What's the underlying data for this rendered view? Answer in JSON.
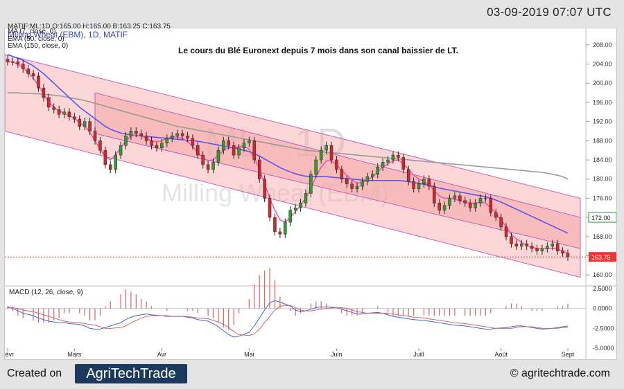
{
  "header": {
    "timestamp": "03-09-2019 07:07 UTC",
    "quote_line": "MATIF:ML:1D O:165.00 H:165.00 B:163.25 C:163.75",
    "symbol_line": "Milling Wheat (EBM), 1D, MATIF",
    "ma_line": "MA (7, close, 0)",
    "ema50_line": "EMA (50, close, 0)",
    "ema150_line": "EMA (150, close, 0)",
    "title": "Le cours du Blé Euronext depuis 7 mois dans son canal baissier de LT.",
    "watermark_big": "ML - 1D",
    "watermark_small": "Milling Wheat (EBM)"
  },
  "footer": {
    "created_on": "Created on",
    "logo_text": "AgriTechTrade",
    "website": "© agritechtrade.com"
  },
  "colors": {
    "up": "#2ca02c",
    "down": "#d62728",
    "ma7": "#ee3333",
    "ema50": "#ff44aa",
    "ema150_blue": "#5555ee",
    "ema150_grey": "#999999",
    "channel_fill": "#f6a5a5",
    "channel_line": "#c060c0",
    "macd_line": "#3366dd",
    "signal_line": "#e06060"
  },
  "chart_data": {
    "type": "candlestick",
    "ylim": [
      158,
      210
    ],
    "yticks": [
      "160.00",
      "164.00",
      "168.00",
      "172.00",
      "176.00",
      "180.00",
      "184.00",
      "188.00",
      "192.00",
      "196.00",
      "200.00",
      "204.00",
      "208.00"
    ],
    "xtick_labels": [
      "Févr",
      "Mars",
      "Avr",
      "Mai",
      "Juin",
      "Juill",
      "Août",
      "Sept"
    ],
    "price_labels": {
      "ema_last": "172.00",
      "close_last": "163.75"
    },
    "close_price": 163.75,
    "ema_level": 172.0,
    "closes": [
      204.5,
      204.5,
      204.0,
      203.0,
      202.0,
      201.5,
      199.0,
      197.0,
      195.0,
      194.5,
      193.5,
      194.0,
      193.0,
      192.5,
      191.0,
      192.0,
      190.0,
      188.0,
      186.0,
      183.0,
      182.0,
      185.0,
      187.0,
      189.0,
      190.0,
      189.5,
      189.0,
      188.0,
      187.0,
      186.5,
      187.5,
      188.5,
      189.0,
      189.5,
      189.0,
      188.5,
      187.0,
      185.0,
      183.0,
      182.0,
      183.5,
      186.0,
      188.0,
      187.0,
      185.0,
      186.5,
      187.5,
      188.0,
      184.0,
      180.0,
      176.0,
      172.0,
      169.0,
      168.5,
      171.0,
      173.5,
      174.0,
      175.0,
      177.0,
      181.0,
      184.0,
      186.0,
      187.0,
      184.0,
      182.0,
      180.0,
      179.0,
      178.0,
      178.5,
      179.5,
      180.5,
      181.0,
      182.5,
      183.5,
      184.0,
      185.0,
      184.5,
      182.0,
      179.5,
      178.0,
      179.0,
      180.0,
      178.5,
      175.0,
      173.5,
      174.5,
      176.0,
      176.5,
      175.5,
      175.0,
      174.0,
      175.0,
      176.0,
      176.0,
      173.0,
      172.0,
      170.0,
      168.0,
      166.5,
      166.0,
      166.5,
      166.0,
      165.5,
      165.0,
      165.5,
      166.0,
      166.5,
      165.0,
      164.5,
      163.75
    ],
    "ma7": [
      204.5,
      204.4,
      204.0,
      203.2,
      202.2,
      201.0,
      199.5,
      197.8,
      196.0,
      195.0,
      194.2,
      193.8,
      193.2,
      192.6,
      191.8,
      191.0,
      189.8,
      188.0,
      186.2,
      184.8,
      184.0,
      185.0,
      186.5,
      188.0,
      189.0,
      189.2,
      189.0,
      188.5,
      188.0,
      187.8,
      188.0,
      188.5,
      188.8,
      188.8,
      188.5,
      187.8,
      186.8,
      185.5,
      184.5,
      183.8,
      184.0,
      185.0,
      186.0,
      186.5,
      186.5,
      186.8,
      186.8,
      186.2,
      184.5,
      182.0,
      179.0,
      176.0,
      173.5,
      171.5,
      171.0,
      172.0,
      173.2,
      174.5,
      176.0,
      178.0,
      180.5,
      182.5,
      183.8,
      183.8,
      183.0,
      181.8,
      180.8,
      179.8,
      179.2,
      179.2,
      179.8,
      180.5,
      181.5,
      182.5,
      183.2,
      183.8,
      184.0,
      183.2,
      182.0,
      180.8,
      180.0,
      179.5,
      178.8,
      177.5,
      176.5,
      176.0,
      176.0,
      175.8,
      175.5,
      175.2,
      175.0,
      175.0,
      175.2,
      175.0,
      174.0,
      173.0,
      171.5,
      170.0,
      168.5,
      167.5,
      166.8,
      166.2,
      165.8,
      165.5,
      165.4,
      165.5,
      165.6,
      165.4,
      165.0,
      164.5
    ],
    "ema50": [
      206.0,
      205.6,
      205.2,
      204.8,
      204.2,
      203.6,
      202.8,
      202.0,
      201.0,
      200.0,
      199.0,
      198.0,
      197.0,
      196.0,
      195.0,
      194.2,
      193.4,
      192.6,
      191.8,
      191.0,
      190.4,
      190.0,
      189.6,
      189.4,
      189.2,
      189.1,
      189.0,
      188.9,
      188.8,
      188.7,
      188.6,
      188.5,
      188.4,
      188.3,
      188.2,
      188.1,
      188.0,
      187.9,
      187.7,
      187.5,
      187.3,
      187.1,
      186.9,
      186.7,
      186.5,
      186.3,
      186.0,
      185.7,
      185.3,
      184.8,
      184.2,
      183.6,
      183.0,
      182.4,
      181.9,
      181.5,
      181.1,
      180.8,
      180.6,
      180.5,
      180.5,
      180.5,
      180.5,
      180.4,
      180.3,
      180.2,
      180.1,
      180.0,
      179.9,
      179.8,
      179.7,
      179.7,
      179.7,
      179.7,
      179.7,
      179.7,
      179.7,
      179.6,
      179.5,
      179.3,
      179.1,
      178.9,
      178.7,
      178.4,
      178.1,
      177.9,
      177.7,
      177.5,
      177.3,
      177.1,
      176.9,
      176.7,
      176.5,
      176.3,
      176.0,
      175.6,
      175.2,
      174.7,
      174.2,
      173.7,
      173.2,
      172.7,
      172.2,
      171.7,
      171.2,
      170.7,
      170.2,
      169.7,
      169.2,
      168.7
    ],
    "ema150": [
      198.0,
      198.0,
      198.0,
      197.9,
      197.9,
      197.8,
      197.8,
      197.7,
      197.6,
      197.5,
      197.4,
      197.2,
      197.0,
      196.8,
      196.6,
      196.4,
      196.1,
      195.8,
      195.5,
      195.2,
      194.9,
      194.6,
      194.3,
      194.0,
      193.7,
      193.4,
      193.1,
      192.8,
      192.5,
      192.2,
      191.9,
      191.6,
      191.3,
      191.0,
      190.8,
      190.6,
      190.4,
      190.2,
      190.0,
      189.8,
      189.6,
      189.4,
      189.2,
      189.0,
      188.8,
      188.6,
      188.4,
      188.2,
      188.0,
      187.8,
      187.6,
      187.4,
      187.2,
      187.0,
      186.8,
      186.6,
      186.4,
      186.2,
      186.0,
      185.9,
      185.8,
      185.7,
      185.6,
      185.5,
      185.4,
      185.3,
      185.2,
      185.1,
      185.0,
      184.9,
      184.8,
      184.7,
      184.6,
      184.5,
      184.4,
      184.3,
      184.2,
      184.1,
      184.0,
      183.9,
      183.8,
      183.7,
      183.6,
      183.5,
      183.4,
      183.3,
      183.2,
      183.1,
      183.0,
      182.9,
      182.8,
      182.7,
      182.6,
      182.5,
      182.4,
      182.3,
      182.2,
      182.1,
      182.0,
      181.9,
      181.8,
      181.7,
      181.6,
      181.5,
      181.4,
      181.2,
      181.0,
      180.8,
      180.5,
      180.0
    ],
    "channel_outer": {
      "start": 206.0,
      "end": 176.0,
      "lower_start": 190.0,
      "lower_end": 159.5
    },
    "channel_inner": {
      "start": 198.0,
      "end": 172.0,
      "lower_start": 189.5,
      "lower_end": 165.5
    },
    "macd": {
      "label": "MACD (12, 26, close, 9)",
      "ylim": [
        -5,
        2.5
      ],
      "yticks": [
        "2.5000",
        "0.0000",
        "-2.5000",
        "-5.0000"
      ],
      "macd_values": [
        0.2,
        0.0,
        -0.3,
        -0.6,
        -0.9,
        -1.2,
        -1.4,
        -1.6,
        -1.7,
        -1.8,
        -1.8,
        -1.9,
        -2.0,
        -2.2,
        -2.5,
        -2.6,
        -2.6,
        -2.4,
        -2.2,
        -1.8,
        -1.4,
        -1.1,
        -0.9,
        -0.8,
        -0.7,
        -0.8,
        -0.9,
        -1.0,
        -1.0,
        -1.0,
        -1.0,
        -1.1,
        -1.2,
        -1.4,
        -1.6,
        -1.9,
        -2.3,
        -2.8,
        -3.3,
        -3.6,
        -3.5,
        -3.0,
        -2.2,
        -1.2,
        -0.2,
        0.7,
        1.0,
        0.8,
        0.3,
        -0.2,
        -0.4,
        -0.3,
        -0.1,
        0.1,
        0.2,
        0.2,
        0.1,
        -0.1,
        -0.3,
        -0.5,
        -0.7,
        -0.7,
        -0.6,
        -0.5,
        -0.6,
        -0.8,
        -1.0,
        -1.1,
        -1.2,
        -1.3,
        -1.4,
        -1.5,
        -1.6,
        -1.7,
        -1.8,
        -1.9,
        -2.0,
        -2.1,
        -2.2,
        -2.3,
        -2.4,
        -2.5,
        -2.6,
        -2.6,
        -2.5,
        -2.4,
        -2.3,
        -2.2,
        -2.2,
        -2.3,
        -2.4,
        -2.5,
        -2.6,
        -2.5,
        -2.4,
        -2.3,
        -2.2
      ],
      "signal_values": [
        0.1,
        0.1,
        0.0,
        -0.2,
        -0.4,
        -0.6,
        -0.8,
        -1.0,
        -1.2,
        -1.4,
        -1.6,
        -1.7,
        -1.8,
        -1.9,
        -2.0,
        -2.1,
        -2.3,
        -2.5,
        -2.5,
        -2.4,
        -2.2,
        -1.8,
        -1.5,
        -1.2,
        -1.0,
        -0.9,
        -0.9,
        -0.9,
        -1.0,
        -1.0,
        -1.0,
        -1.0,
        -1.1,
        -1.2,
        -1.3,
        -1.5,
        -1.7,
        -2.0,
        -2.4,
        -2.9,
        -3.3,
        -3.4,
        -3.2,
        -2.6,
        -1.8,
        -1.0,
        -0.2,
        0.3,
        0.4,
        0.1,
        -0.2,
        -0.3,
        -0.3,
        -0.2,
        -0.1,
        0.0,
        0.1,
        0.1,
        0.0,
        -0.2,
        -0.4,
        -0.5,
        -0.6,
        -0.6,
        -0.6,
        -0.6,
        -0.7,
        -0.8,
        -0.9,
        -1.0,
        -1.1,
        -1.2,
        -1.3,
        -1.4,
        -1.5,
        -1.6,
        -1.7,
        -1.8,
        -1.9,
        -2.0,
        -2.1,
        -2.2,
        -2.3,
        -2.4,
        -2.5,
        -2.5,
        -2.5,
        -2.4,
        -2.3,
        -2.3,
        -2.3,
        -2.4,
        -2.5,
        -2.5,
        -2.5,
        -2.4,
        -2.4
      ]
    }
  }
}
